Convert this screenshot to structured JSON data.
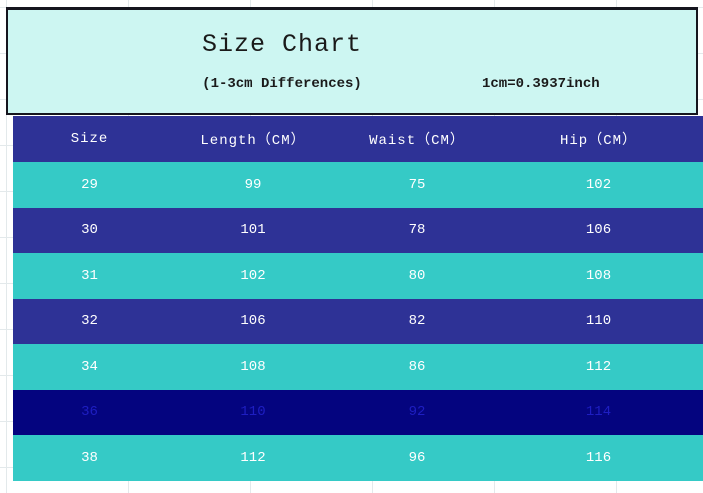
{
  "title_band": {
    "title": "Size Chart",
    "subtitle": "(1-3cm Differences)",
    "conversion": "1cm=0.3937inch"
  },
  "colors": {
    "band_bg": "#cdf6f2",
    "band_border": "#15151e",
    "indigo": "#2e3296",
    "teal": "#35cac6",
    "navy": "#04047f",
    "navy_text": "#1e1ec2",
    "white_text": "#ffffff",
    "gridline": "#e3e9eb"
  },
  "chart_data": {
    "type": "table",
    "title": "Size Chart",
    "subtitle": "(1-3cm Differences)",
    "note": "1cm=0.3937inch",
    "columns": [
      "Size",
      "Length（CM）",
      "Waist（CM）",
      "Hip（CM）"
    ],
    "rows": [
      {
        "size": "29",
        "length": "99",
        "waist": "75",
        "hip": "102",
        "variant": "teal"
      },
      {
        "size": "30",
        "length": "101",
        "waist": "78",
        "hip": "106",
        "variant": "indigo"
      },
      {
        "size": "31",
        "length": "102",
        "waist": "80",
        "hip": "108",
        "variant": "teal"
      },
      {
        "size": "32",
        "length": "106",
        "waist": "82",
        "hip": "110",
        "variant": "indigo"
      },
      {
        "size": "34",
        "length": "108",
        "waist": "86",
        "hip": "112",
        "variant": "teal"
      },
      {
        "size": "36",
        "length": "110",
        "waist": "92",
        "hip": "114",
        "variant": "navy"
      },
      {
        "size": "38",
        "length": "112",
        "waist": "96",
        "hip": "116",
        "variant": "teal"
      }
    ]
  }
}
